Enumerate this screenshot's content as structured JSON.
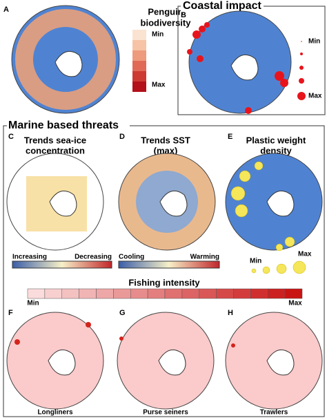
{
  "panels": [
    {
      "label": "A",
      "title_lines": [
        "Penguin",
        "biodiversity"
      ],
      "legend": [
        "Min",
        "Max"
      ]
    },
    {
      "label": "B",
      "title": "Coastal impact",
      "legend": [
        "Min",
        "Max"
      ]
    },
    {
      "label": "C",
      "title_lines": [
        "Trends sea-ice",
        "concentration"
      ],
      "legend": [
        "Increasing",
        "Decreasing"
      ]
    },
    {
      "label": "D",
      "title_lines": [
        "Trends SST",
        "(max)"
      ],
      "legend": [
        "Cooling",
        "Warming"
      ]
    },
    {
      "label": "E",
      "title_lines": [
        "Plastic weight",
        "density"
      ],
      "legend": [
        "Min",
        "Max"
      ]
    },
    {
      "label": "F",
      "caption": "Longliners"
    },
    {
      "label": "G",
      "caption": "Purse seiners"
    },
    {
      "label": "H",
      "caption": "Trawlers"
    }
  ],
  "section": {
    "title": "Marine based threats"
  },
  "fishing_legend": {
    "title": "Fishing intensity",
    "legend": [
      "Min",
      "Max"
    ]
  }
}
